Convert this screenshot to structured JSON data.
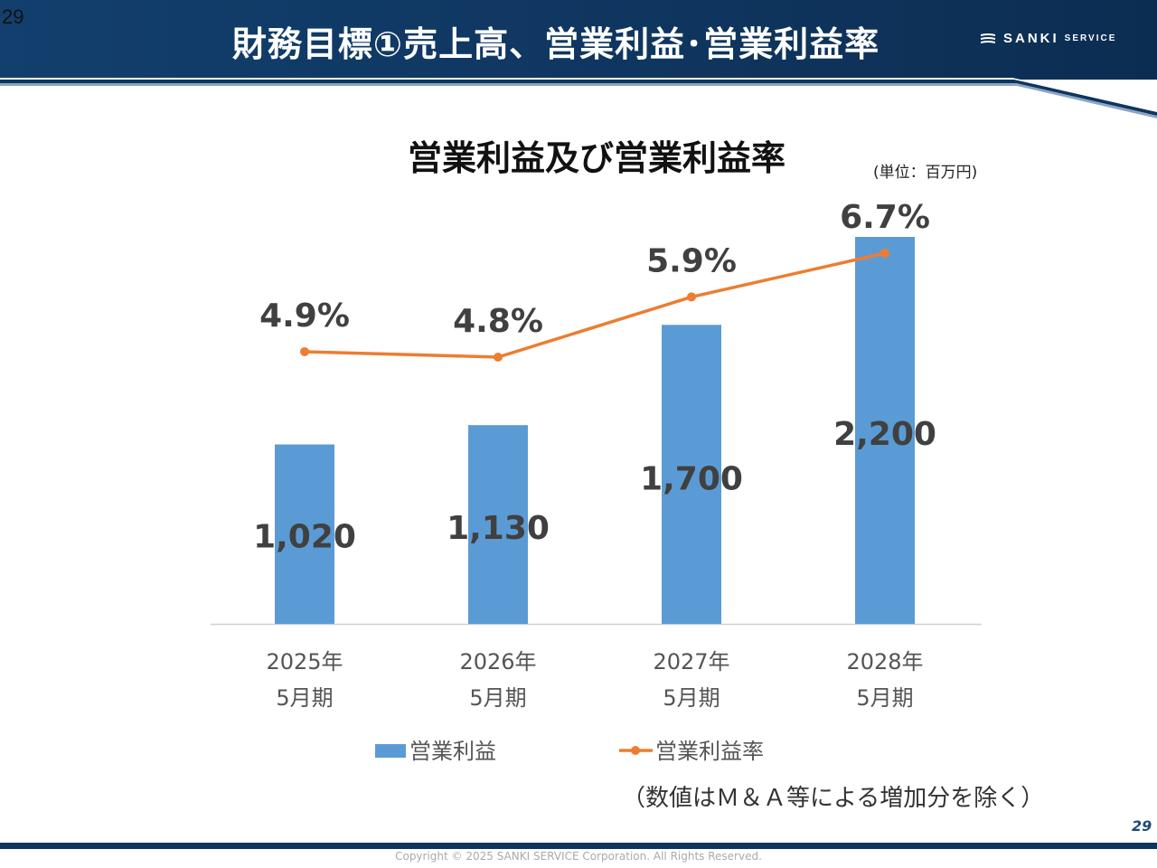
{
  "page": {
    "corner_number": "29",
    "title": "財務目標①売上高、営業利益･営業利益率",
    "logo_main": "SANKI",
    "logo_sub": "SERVICE",
    "unit_label": "(単位：百万円)",
    "note": "（数値はＭ＆Ａ等による増加分を除く）",
    "page_number": "29",
    "copyright": "Copyright © 2025 SANKI SERVICE Corporation. All Rights Reserved."
  },
  "colors": {
    "bar": "#5b9bd5",
    "line": "#ed7d31",
    "header": "#0f355e"
  },
  "chart_data": {
    "type": "bar",
    "title": "営業利益及び営業利益率",
    "categories": [
      [
        "2025年",
        "5月期"
      ],
      [
        "2026年",
        "5月期"
      ],
      [
        "2027年",
        "5月期"
      ],
      [
        "2028年",
        "5月期"
      ]
    ],
    "series": [
      {
        "name": "営業利益",
        "kind": "bar",
        "values": [
          1020,
          1130,
          1700,
          2200
        ],
        "labels": [
          "1,020",
          "1,130",
          "1,700",
          "2,200"
        ]
      },
      {
        "name": "営業利益率",
        "kind": "line",
        "values": [
          4.9,
          4.8,
          5.9,
          6.7
        ],
        "labels": [
          "4.9%",
          "4.8%",
          "5.9%",
          "6.7%"
        ]
      }
    ],
    "bar_axis_range": [
      0,
      2200
    ],
    "line_axis_range": [
      0,
      6.7
    ],
    "legend_position": "bottom"
  }
}
